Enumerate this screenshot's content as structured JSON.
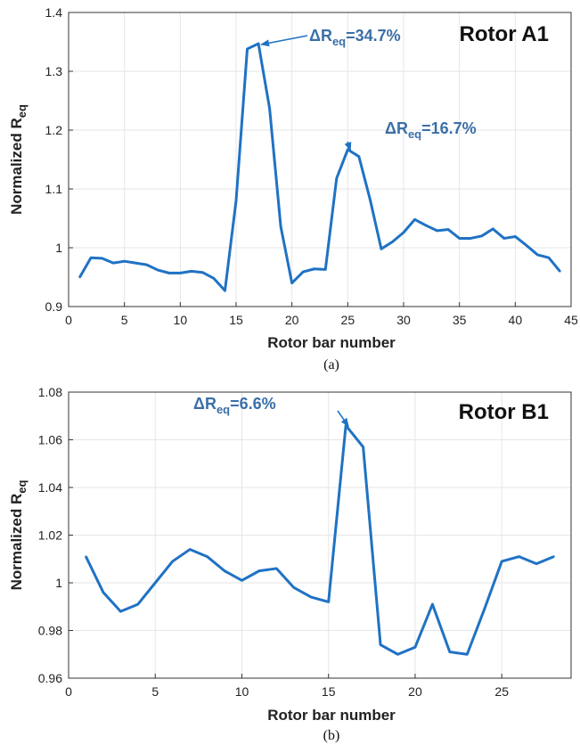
{
  "chart_data": [
    {
      "type": "line",
      "panel_title": "Rotor A1",
      "xlabel": "Rotor bar number",
      "ylabel": "Normalized R",
      "ylabel_sub": "eq",
      "xlim": [
        0,
        45
      ],
      "ylim": [
        0.9,
        1.4
      ],
      "xticks": [
        0,
        5,
        10,
        15,
        20,
        25,
        30,
        35,
        40,
        45
      ],
      "yticks": [
        "0.9",
        "1",
        "1.1",
        "1.2",
        "1.3",
        "1.4"
      ],
      "yticks_val": [
        0.9,
        1.0,
        1.1,
        1.2,
        1.3,
        1.4
      ],
      "grid": true,
      "color": "#1f72c4",
      "x": [
        1,
        2,
        3,
        4,
        5,
        6,
        7,
        8,
        9,
        10,
        11,
        12,
        13,
        14,
        15,
        16,
        17,
        18,
        19,
        20,
        21,
        22,
        23,
        24,
        25,
        26,
        27,
        28,
        29,
        30,
        31,
        32,
        33,
        34,
        35,
        36,
        37,
        38,
        39,
        40,
        41,
        42,
        43,
        44
      ],
      "values": [
        0.95,
        0.983,
        0.982,
        0.974,
        0.977,
        0.974,
        0.971,
        0.962,
        0.957,
        0.957,
        0.96,
        0.958,
        0.948,
        0.927,
        1.08,
        1.338,
        1.347,
        1.237,
        1.036,
        0.94,
        0.959,
        0.964,
        0.963,
        1.118,
        1.167,
        1.155,
        1.082,
        0.998,
        1.01,
        1.026,
        1.048,
        1.038,
        1.029,
        1.031,
        1.016,
        1.016,
        1.02,
        1.032,
        1.016,
        1.019,
        1.004,
        0.988,
        0.983,
        0.96
      ],
      "annotations": [
        {
          "prefix": "ΔR",
          "sub": "eq",
          "value": "=34.7%",
          "at": [
            17,
            1.347
          ]
        },
        {
          "prefix": "ΔR",
          "sub": "eq",
          "value": "=16.7%",
          "at": [
            25,
            1.167
          ]
        }
      ],
      "caption": "(a)"
    },
    {
      "type": "line",
      "panel_title": "Rotor B1",
      "xlabel": "Rotor bar number",
      "ylabel": "Normalized R",
      "ylabel_sub": "eq",
      "xlim": [
        0,
        29
      ],
      "ylim": [
        0.96,
        1.08
      ],
      "xticks": [
        0,
        5,
        10,
        15,
        20,
        25
      ],
      "yticks": [
        "0.96",
        "0.98",
        "1",
        "1.02",
        "1.04",
        "1.06",
        "1.08"
      ],
      "yticks_val": [
        0.96,
        0.98,
        1.0,
        1.02,
        1.04,
        1.06,
        1.08
      ],
      "grid": true,
      "color": "#1f72c4",
      "x": [
        1,
        2,
        3,
        4,
        5,
        6,
        7,
        8,
        9,
        10,
        11,
        12,
        13,
        14,
        15,
        16,
        17,
        18,
        19,
        20,
        21,
        22,
        23,
        24,
        25,
        26,
        27,
        28
      ],
      "values": [
        1.011,
        0.996,
        0.988,
        0.991,
        1.0,
        1.009,
        1.014,
        1.011,
        1.005,
        1.001,
        1.005,
        1.006,
        0.998,
        0.994,
        0.992,
        1.066,
        1.057,
        0.974,
        0.97,
        0.973,
        0.991,
        0.971,
        0.97,
        0.989,
        1.009,
        1.011,
        1.008,
        1.011
      ],
      "annotations": [
        {
          "prefix": "ΔR",
          "sub": "eq",
          "value": "=6.6%",
          "at": [
            16,
            1.066
          ]
        }
      ],
      "caption": "(b)"
    }
  ]
}
